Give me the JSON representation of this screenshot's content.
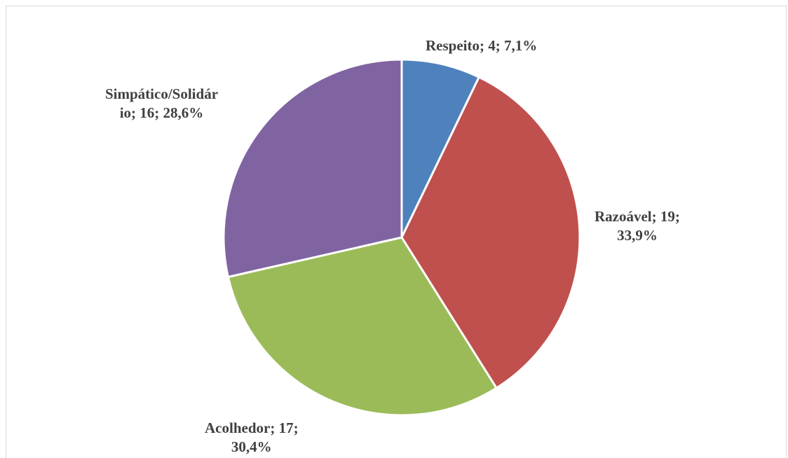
{
  "chart_data": {
    "type": "pie",
    "title": "",
    "slices": [
      {
        "label": "Respeito",
        "value": 4,
        "percent": "7,1%",
        "color": "#4f81bd",
        "label_text": [
          "Respeito; 4; 7,1%"
        ]
      },
      {
        "label": "Razoável",
        "value": 19,
        "percent": "33,9%",
        "color": "#c0504d",
        "label_text": [
          "Razoável; 19;",
          "33,9%"
        ]
      },
      {
        "label": "Acolhedor",
        "value": 17,
        "percent": "30,4%",
        "color": "#9bbb59",
        "label_text": [
          "Acolhedor; 17;",
          "30,4%"
        ]
      },
      {
        "label": "Simpático/Solidário",
        "value": 16,
        "percent": "28,6%",
        "color": "#8064a2",
        "label_text": [
          "Simpático/Solidár",
          "io; 16; 28,6%"
        ]
      }
    ]
  }
}
